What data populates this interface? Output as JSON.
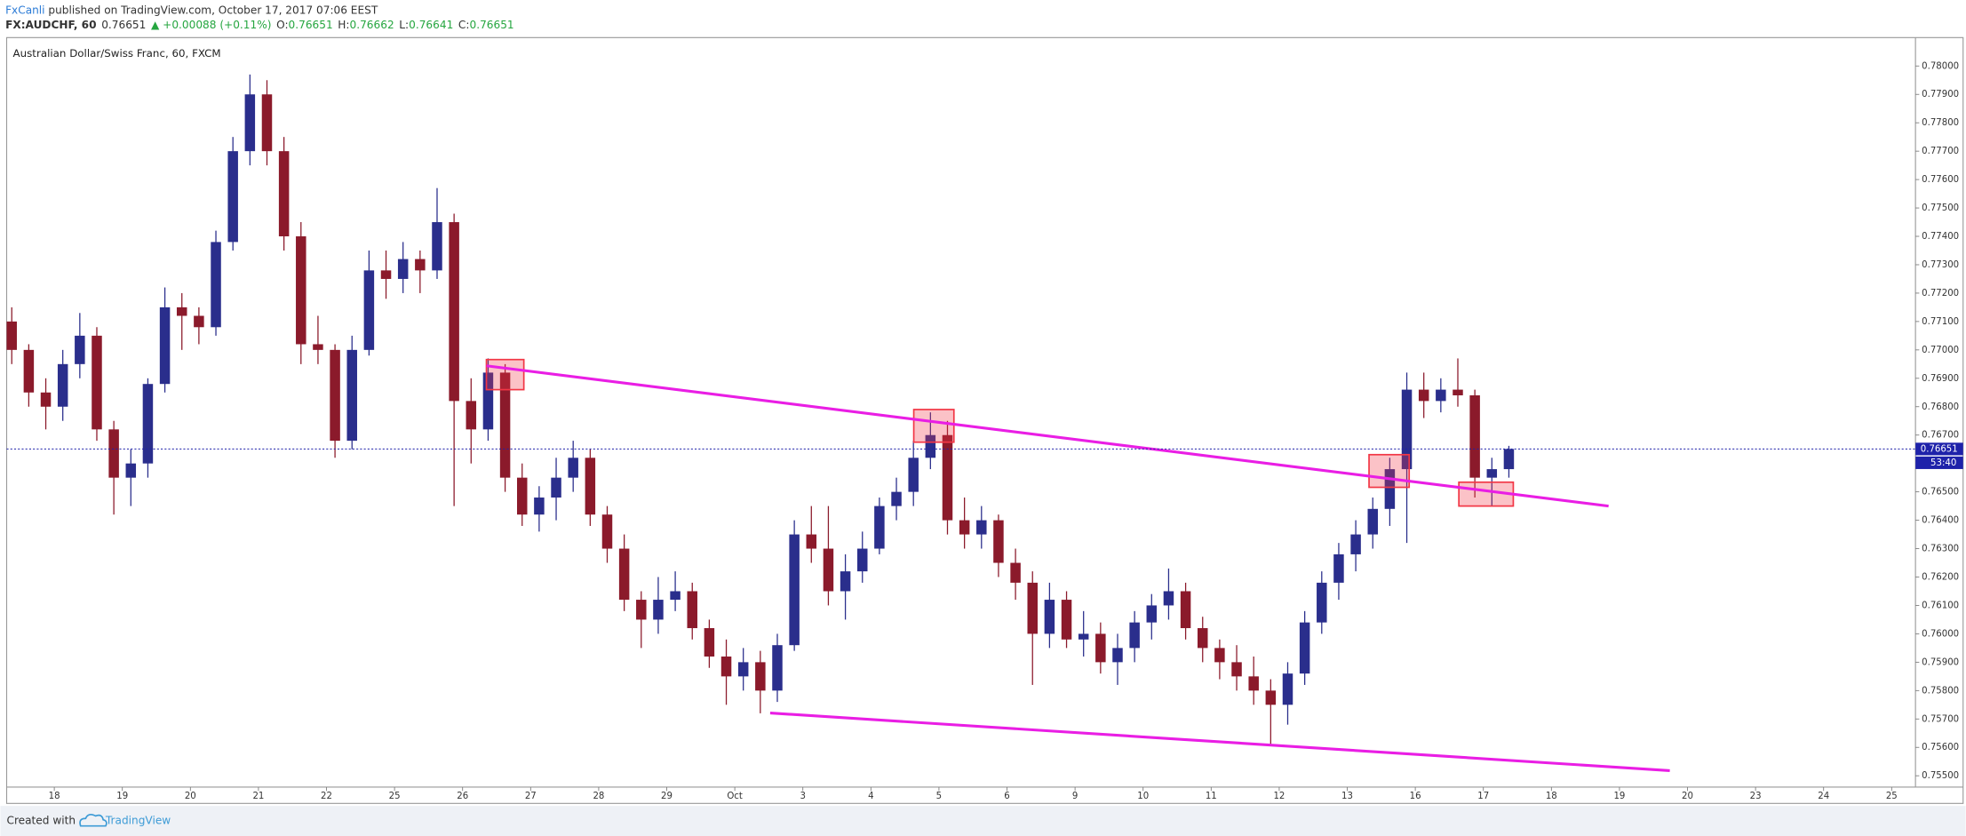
{
  "header": {
    "author": "FxCanli",
    "published": " published on TradingView.com, October 17, 2017 07:06 EEST",
    "symbol": "FX:AUDCHF, 60",
    "price": "0.76651",
    "change": "▲ +0.00088 (+0.11%)",
    "ohlc_keys": [
      "O:",
      "H:",
      "L:",
      "C:"
    ],
    "ohlc_values": [
      "0.76651",
      "0.76662",
      "0.76641",
      "0.76651"
    ]
  },
  "chart_data": {
    "type": "candlestick",
    "title": "Australian Dollar/Swiss Franc, 60, FXCM",
    "up_color": "#2a2e8c",
    "down_color": "#8b1a2b",
    "xlim": [
      -0.7,
      27.35
    ],
    "ylim": [
      0.7546,
      0.781
    ],
    "xticks": [
      {
        "value": 0,
        "label": "18"
      },
      {
        "value": 1,
        "label": "19"
      },
      {
        "value": 2,
        "label": "20"
      },
      {
        "value": 3,
        "label": "21"
      },
      {
        "value": 4,
        "label": "22"
      },
      {
        "value": 5,
        "label": "25"
      },
      {
        "value": 6,
        "label": "26"
      },
      {
        "value": 7,
        "label": "27"
      },
      {
        "value": 8,
        "label": "28"
      },
      {
        "value": 9,
        "label": "29"
      },
      {
        "value": 10,
        "label": "Oct"
      },
      {
        "value": 11,
        "label": "3"
      },
      {
        "value": 12,
        "label": "4"
      },
      {
        "value": 13,
        "label": "5"
      },
      {
        "value": 14,
        "label": "6"
      },
      {
        "value": 15,
        "label": "9"
      },
      {
        "value": 16,
        "label": "10"
      },
      {
        "value": 17,
        "label": "11"
      },
      {
        "value": 18,
        "label": "12"
      },
      {
        "value": 19,
        "label": "13"
      },
      {
        "value": 20,
        "label": "16"
      },
      {
        "value": 21,
        "label": "17"
      },
      {
        "value": 22,
        "label": "18"
      },
      {
        "value": 23,
        "label": "19"
      },
      {
        "value": 24,
        "label": "20"
      },
      {
        "value": 25,
        "label": "23"
      },
      {
        "value": 26,
        "label": "24"
      },
      {
        "value": 27,
        "label": "25"
      }
    ],
    "yticks": [
      {
        "value": 0.755,
        "label": "0.75500"
      },
      {
        "value": 0.756,
        "label": "0.75600"
      },
      {
        "value": 0.757,
        "label": "0.75700"
      },
      {
        "value": 0.758,
        "label": "0.75800"
      },
      {
        "value": 0.759,
        "label": "0.75900"
      },
      {
        "value": 0.76,
        "label": "0.76000"
      },
      {
        "value": 0.761,
        "label": "0.76100"
      },
      {
        "value": 0.762,
        "label": "0.76200"
      },
      {
        "value": 0.763,
        "label": "0.76300"
      },
      {
        "value": 0.764,
        "label": "0.76400"
      },
      {
        "value": 0.765,
        "label": "0.76500"
      },
      {
        "value": 0.767,
        "label": "0.76700"
      },
      {
        "value": 0.768,
        "label": "0.76800"
      },
      {
        "value": 0.769,
        "label": "0.76900"
      },
      {
        "value": 0.77,
        "label": "0.77000"
      },
      {
        "value": 0.771,
        "label": "0.77100"
      },
      {
        "value": 0.772,
        "label": "0.77200"
      },
      {
        "value": 0.773,
        "label": "0.77300"
      },
      {
        "value": 0.774,
        "label": "0.77400"
      },
      {
        "value": 0.775,
        "label": "0.77500"
      },
      {
        "value": 0.776,
        "label": "0.77600"
      },
      {
        "value": 0.777,
        "label": "0.77700"
      },
      {
        "value": 0.778,
        "label": "0.77800"
      },
      {
        "value": 0.779,
        "label": "0.77900"
      },
      {
        "value": 0.78,
        "label": "0.78000"
      }
    ],
    "grid": false,
    "last_price": 0.76651,
    "countdown": "53:40",
    "last_color": "#1e22aa",
    "x": [
      -0.625,
      -0.375,
      -0.125,
      0.125,
      0.375,
      0.625,
      0.875,
      1.125,
      1.375,
      1.625,
      1.875,
      2.125,
      2.375,
      2.625,
      2.875,
      3.125,
      3.375,
      3.625,
      3.875,
      4.125,
      4.375,
      4.625,
      4.875,
      5.125,
      5.375,
      5.625,
      5.875,
      6.125,
      6.375,
      6.625,
      6.875,
      7.125,
      7.375,
      7.625,
      7.875,
      8.125,
      8.375,
      8.625,
      8.875,
      9.125,
      9.375,
      9.625,
      9.875,
      10.125,
      10.375,
      10.625,
      10.875,
      11.125,
      11.375,
      11.625,
      11.875,
      12.125,
      12.375,
      12.625,
      12.875,
      13.125,
      13.375,
      13.625,
      13.875,
      14.125,
      14.375,
      14.625,
      14.875,
      15.125,
      15.375,
      15.625,
      15.875,
      16.125,
      16.375,
      16.625,
      16.875,
      17.125,
      17.375,
      17.625,
      17.875,
      18.125,
      18.375,
      18.625,
      18.875,
      19.125,
      19.375,
      19.625,
      19.875,
      20.125,
      20.375,
      20.625,
      20.875,
      21.125,
      21.375
    ],
    "ohlc": [
      [
        0.771,
        0.7715,
        0.7695,
        0.77
      ],
      [
        0.77,
        0.7702,
        0.768,
        0.7685
      ],
      [
        0.7685,
        0.769,
        0.7672,
        0.768
      ],
      [
        0.768,
        0.77,
        0.7675,
        0.7695
      ],
      [
        0.7695,
        0.7713,
        0.769,
        0.7705
      ],
      [
        0.7705,
        0.7708,
        0.7668,
        0.7672
      ],
      [
        0.7672,
        0.7675,
        0.7642,
        0.7655
      ],
      [
        0.7655,
        0.7665,
        0.7645,
        0.766
      ],
      [
        0.766,
        0.769,
        0.7655,
        0.7688
      ],
      [
        0.7688,
        0.7722,
        0.7685,
        0.7715
      ],
      [
        0.7715,
        0.772,
        0.77,
        0.7712
      ],
      [
        0.7712,
        0.7715,
        0.7702,
        0.7708
      ],
      [
        0.7708,
        0.7742,
        0.7705,
        0.7738
      ],
      [
        0.7738,
        0.7775,
        0.7735,
        0.777
      ],
      [
        0.777,
        0.7797,
        0.7765,
        0.779
      ],
      [
        0.779,
        0.7795,
        0.7765,
        0.777
      ],
      [
        0.777,
        0.7775,
        0.7735,
        0.774
      ],
      [
        0.774,
        0.7745,
        0.7695,
        0.7702
      ],
      [
        0.7702,
        0.7712,
        0.7695,
        0.77
      ],
      [
        0.77,
        0.7702,
        0.7662,
        0.7668
      ],
      [
        0.7668,
        0.7705,
        0.7665,
        0.77
      ],
      [
        0.77,
        0.7735,
        0.7698,
        0.7728
      ],
      [
        0.7728,
        0.7735,
        0.7718,
        0.7725
      ],
      [
        0.7725,
        0.7738,
        0.772,
        0.7732
      ],
      [
        0.7732,
        0.7735,
        0.772,
        0.7728
      ],
      [
        0.7728,
        0.7757,
        0.7725,
        0.7745
      ],
      [
        0.7745,
        0.7748,
        0.7645,
        0.7682
      ],
      [
        0.7682,
        0.769,
        0.766,
        0.7672
      ],
      [
        0.7672,
        0.7697,
        0.7668,
        0.7692
      ],
      [
        0.7692,
        0.7695,
        0.765,
        0.7655
      ],
      [
        0.7655,
        0.766,
        0.7638,
        0.7642
      ],
      [
        0.7642,
        0.7652,
        0.7636,
        0.7648
      ],
      [
        0.7648,
        0.7662,
        0.764,
        0.7655
      ],
      [
        0.7655,
        0.7668,
        0.765,
        0.7662
      ],
      [
        0.7662,
        0.7665,
        0.7638,
        0.7642
      ],
      [
        0.7642,
        0.7645,
        0.7625,
        0.763
      ],
      [
        0.763,
        0.7635,
        0.7608,
        0.7612
      ],
      [
        0.7612,
        0.7615,
        0.7595,
        0.7605
      ],
      [
        0.7605,
        0.762,
        0.76,
        0.7612
      ],
      [
        0.7612,
        0.7622,
        0.7608,
        0.7615
      ],
      [
        0.7615,
        0.7618,
        0.7598,
        0.7602
      ],
      [
        0.7602,
        0.7605,
        0.7588,
        0.7592
      ],
      [
        0.7592,
        0.7598,
        0.7575,
        0.7585
      ],
      [
        0.7585,
        0.7595,
        0.758,
        0.759
      ],
      [
        0.759,
        0.7594,
        0.7572,
        0.758
      ],
      [
        0.758,
        0.76,
        0.7576,
        0.7596
      ],
      [
        0.7596,
        0.764,
        0.7594,
        0.7635
      ],
      [
        0.7635,
        0.7645,
        0.7625,
        0.763
      ],
      [
        0.763,
        0.7645,
        0.761,
        0.7615
      ],
      [
        0.7615,
        0.7628,
        0.7605,
        0.7622
      ],
      [
        0.7622,
        0.7636,
        0.7618,
        0.763
      ],
      [
        0.763,
        0.7648,
        0.7628,
        0.7645
      ],
      [
        0.7645,
        0.7655,
        0.764,
        0.765
      ],
      [
        0.765,
        0.7668,
        0.7645,
        0.7662
      ],
      [
        0.7662,
        0.7678,
        0.7658,
        0.767
      ],
      [
        0.767,
        0.7675,
        0.7635,
        0.764
      ],
      [
        0.764,
        0.7648,
        0.763,
        0.7635
      ],
      [
        0.7635,
        0.7645,
        0.763,
        0.764
      ],
      [
        0.764,
        0.7642,
        0.762,
        0.7625
      ],
      [
        0.7625,
        0.763,
        0.7612,
        0.7618
      ],
      [
        0.7618,
        0.7622,
        0.7582,
        0.76
      ],
      [
        0.76,
        0.7618,
        0.7595,
        0.7612
      ],
      [
        0.7612,
        0.7615,
        0.7595,
        0.7598
      ],
      [
        0.7598,
        0.7608,
        0.7592,
        0.76
      ],
      [
        0.76,
        0.7604,
        0.7586,
        0.759
      ],
      [
        0.759,
        0.76,
        0.7582,
        0.7595
      ],
      [
        0.7595,
        0.7608,
        0.759,
        0.7604
      ],
      [
        0.7604,
        0.7614,
        0.7598,
        0.761
      ],
      [
        0.761,
        0.7623,
        0.7605,
        0.7615
      ],
      [
        0.7615,
        0.7618,
        0.7598,
        0.7602
      ],
      [
        0.7602,
        0.7606,
        0.759,
        0.7595
      ],
      [
        0.7595,
        0.7598,
        0.7584,
        0.759
      ],
      [
        0.759,
        0.7596,
        0.758,
        0.7585
      ],
      [
        0.7585,
        0.7592,
        0.7575,
        0.758
      ],
      [
        0.758,
        0.7584,
        0.7561,
        0.7575
      ],
      [
        0.7575,
        0.759,
        0.7568,
        0.7586
      ],
      [
        0.7586,
        0.7608,
        0.7582,
        0.7604
      ],
      [
        0.7604,
        0.7622,
        0.76,
        0.7618
      ],
      [
        0.7618,
        0.7632,
        0.7612,
        0.7628
      ],
      [
        0.7628,
        0.764,
        0.7622,
        0.7635
      ],
      [
        0.7635,
        0.7648,
        0.763,
        0.7644
      ],
      [
        0.7644,
        0.7662,
        0.7638,
        0.7658
      ],
      [
        0.7658,
        0.7692,
        0.7632,
        0.7686
      ],
      [
        0.7686,
        0.7692,
        0.7676,
        0.7682
      ],
      [
        0.7682,
        0.769,
        0.7678,
        0.7686
      ],
      [
        0.7686,
        0.7697,
        0.768,
        0.7684
      ],
      [
        0.7684,
        0.7686,
        0.7648,
        0.7655
      ],
      [
        0.7655,
        0.7662,
        0.7645,
        0.7658
      ],
      [
        0.7658,
        0.76662,
        0.7655,
        0.76651
      ]
    ],
    "trendlines": [
      {
        "color": "#e91ee4",
        "x": [
          6.35,
          22.84
        ],
        "y": [
          0.76944,
          0.7645
        ]
      },
      {
        "color": "#e91ee4",
        "x": [
          10.52,
          23.74
        ],
        "y": [
          0.75721,
          0.75518
        ]
      }
    ],
    "boxes": [
      {
        "color": "#f23645",
        "x": [
          6.35,
          6.9
        ],
        "y": [
          0.7686,
          0.76966
        ]
      },
      {
        "color": "#f23645",
        "x": [
          12.63,
          13.22
        ],
        "y": [
          0.76675,
          0.7679
        ]
      },
      {
        "color": "#f23645",
        "x": [
          19.32,
          19.91
        ],
        "y": [
          0.76516,
          0.76631
        ]
      },
      {
        "color": "#f23645",
        "x": [
          20.64,
          21.44
        ],
        "y": [
          0.7645,
          0.76534
        ]
      }
    ]
  },
  "footer": {
    "created": "Created with",
    "brand": "TradingView"
  }
}
